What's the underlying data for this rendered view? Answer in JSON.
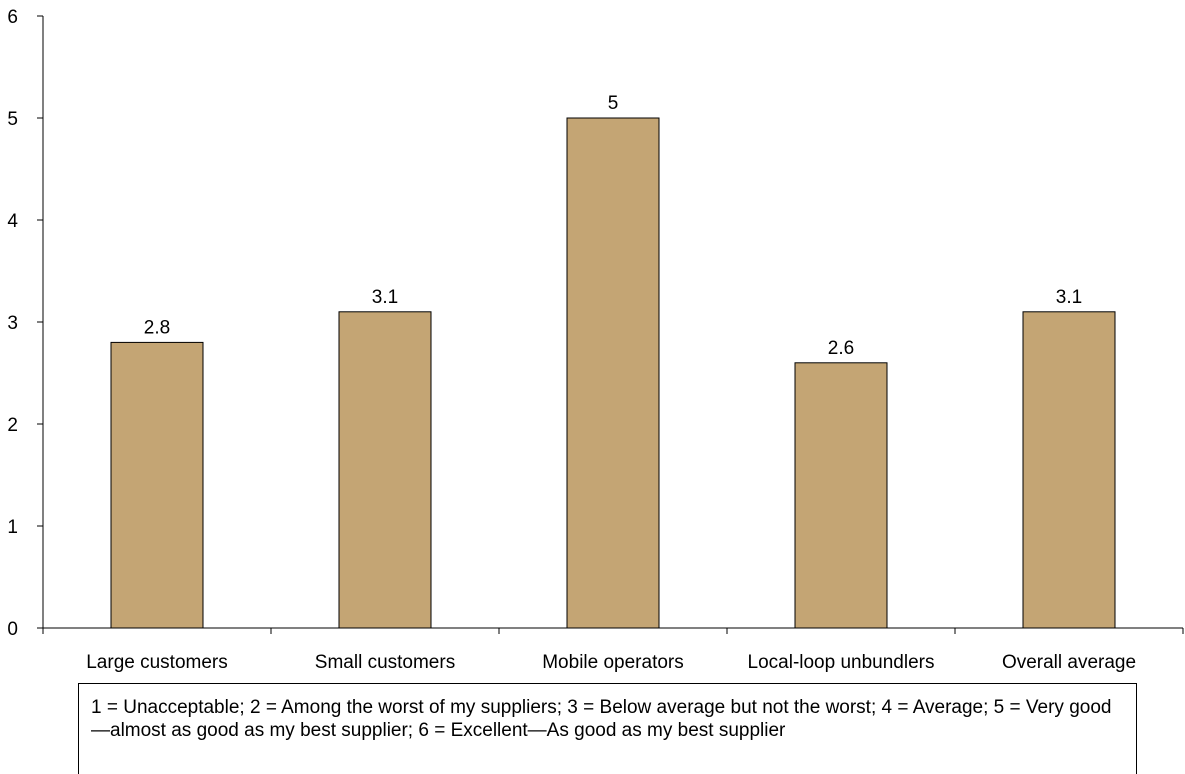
{
  "chart_data": {
    "type": "bar",
    "title": "",
    "xlabel": "",
    "ylabel": "",
    "categories": [
      "Large customers",
      "Small customers",
      "Mobile operators",
      "Local-loop unbundlers",
      "Overall average"
    ],
    "values": [
      2.8,
      3.1,
      5,
      2.6,
      3.1
    ],
    "value_labels": [
      "2.8",
      "3.1",
      "5",
      "2.6",
      "3.1"
    ],
    "ylim": [
      0,
      6
    ],
    "yticks": [
      0,
      1,
      2,
      3,
      4,
      5,
      6
    ],
    "grid": false,
    "bar_color": "#C4A574",
    "bar_edge_color": "#000000"
  },
  "note": "1 = Unacceptable; 2 = Among the worst of my suppliers; 3 = Below average but not the worst; 4 = Average; 5 = Very good—almost as good as my best supplier; 6 = Excellent—As good as my best supplier"
}
